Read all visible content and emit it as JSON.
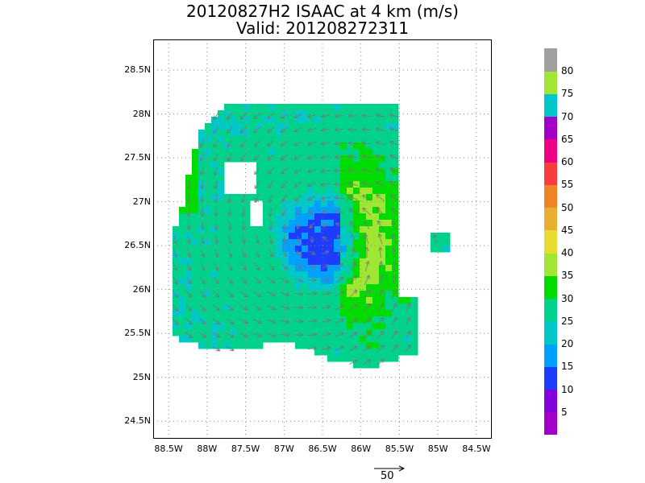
{
  "title": {
    "line1": "20120827H2 ISAAC at 4 km (m/s)",
    "line2": "Valid: 201208272311"
  },
  "axes": {
    "y_ticks": [
      "28.5N",
      "28N",
      "27.5N",
      "27N",
      "26.5N",
      "26N",
      "25.5N",
      "25N",
      "24.5N"
    ],
    "y_values": [
      28.5,
      28,
      27.5,
      27,
      26.5,
      26,
      25.5,
      25,
      24.5
    ],
    "x_ticks": [
      "88.5W",
      "88W",
      "87.5W",
      "87W",
      "86.5W",
      "86W",
      "85.5W",
      "85W",
      "84.5W"
    ],
    "x_values": [
      -88.5,
      -88,
      -87.5,
      -87,
      -86.5,
      -86,
      -85.5,
      -85,
      -84.5
    ],
    "lon_range": [
      -88.7,
      -84.3
    ],
    "lat_range": [
      24.3,
      28.85
    ],
    "grid": "dotted"
  },
  "storm": {
    "name": "ISAAC",
    "center_lat": 26.55,
    "center_lon": -86.5
  },
  "colorbar": {
    "labels": [
      "5",
      "10",
      "15",
      "20",
      "25",
      "30",
      "35",
      "40",
      "45",
      "50",
      "55",
      "60",
      "65",
      "70",
      "75",
      "80"
    ],
    "colors": [
      "#a000c8",
      "#8200dc",
      "#1e3cff",
      "#00a0ff",
      "#00c8c8",
      "#00d28c",
      "#00dc00",
      "#a0e632",
      "#e6dc32",
      "#e6af2d",
      "#f08228",
      "#fa3c3c",
      "#f00082",
      "#a000c8",
      "#00c8c8",
      "#a0e632",
      "#a0a0a0"
    ]
  },
  "reference_vector": {
    "label": "50"
  }
}
